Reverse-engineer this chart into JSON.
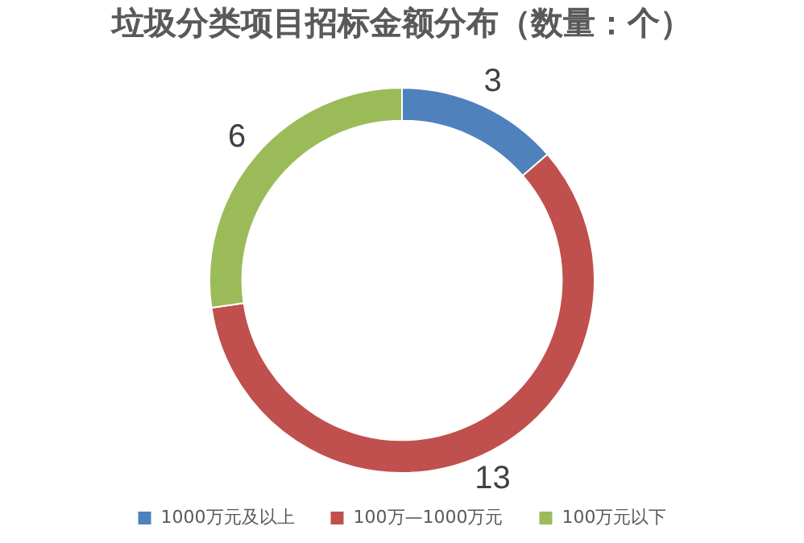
{
  "chart_data": {
    "type": "donut",
    "title": "垃圾分类项目招标金额分布（数量：个）",
    "categories": [
      "1000万元及以上",
      "100万—1000万元",
      "100万元以下"
    ],
    "values": [
      3,
      13,
      6
    ],
    "colors": [
      "#4f81bd",
      "#c0504d",
      "#9bbb59"
    ],
    "data_labels": true,
    "legend": "bottom"
  }
}
